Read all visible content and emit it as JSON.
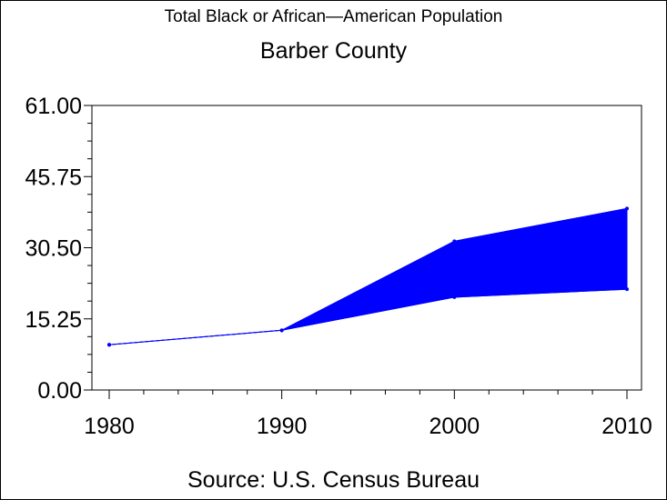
{
  "title": "Total Black or African—American Population",
  "subtitle": "Barber County",
  "source": "Source: U.S. Census Bureau",
  "chart_data": {
    "type": "area",
    "x": [
      1980,
      1990,
      2000,
      2010
    ],
    "series": [
      {
        "values": [
          9.7,
          12.8,
          31.9,
          38.9
        ]
      },
      {
        "values": [
          9.7,
          12.8,
          19.9,
          21.6
        ]
      }
    ],
    "xlim": [
      1980,
      2010
    ],
    "ylim": [
      0,
      61
    ],
    "xticks": [
      "1980",
      "1990",
      "2000",
      "2010"
    ],
    "yticks": [
      "0.00",
      "15.25",
      "30.50",
      "45.75",
      "61.00"
    ],
    "ytick_values": [
      0,
      15.25,
      30.5,
      45.75,
      61
    ],
    "fill_color": "#0000ff",
    "line_color": "#0000ff",
    "grid": false
  }
}
